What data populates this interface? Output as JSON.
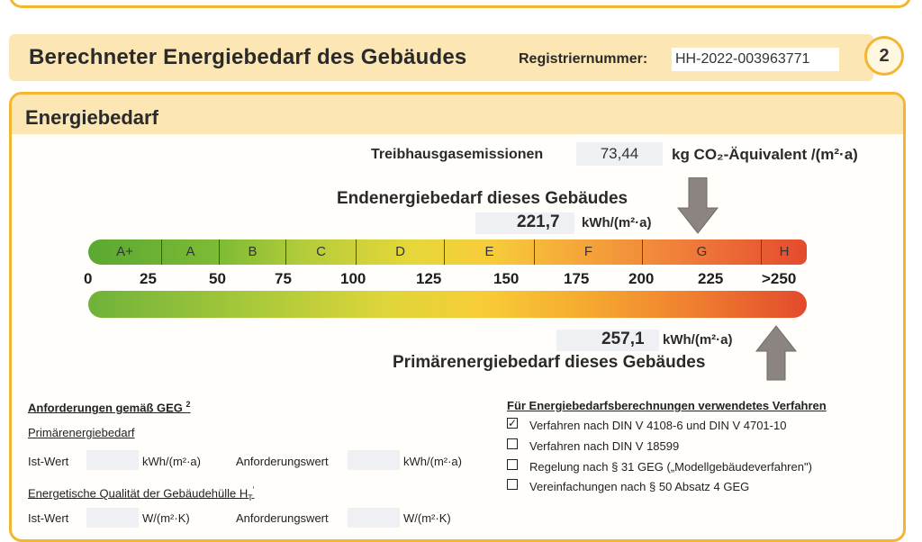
{
  "header": {
    "title": "Berechneter Energiebedarf des Gebäudes",
    "registration_label": "Registriernummer:",
    "registration_number": "HH-2022-003963771",
    "page_number": "2"
  },
  "section": {
    "title": "Energiebedarf"
  },
  "emissions": {
    "label": "Treibhausgasemissionen",
    "value": "73,44",
    "unit": "kg CO₂-Äquivalent /(m²·a)"
  },
  "end_energy": {
    "title": "Endenergiebedarf dieses Gebäudes",
    "value": "221,7",
    "unit": "kWh/(m²·a)",
    "numeric_value": 221.7
  },
  "primary_energy": {
    "title": "Primärenergiebedarf dieses Gebäudes",
    "value": "257,1",
    "unit": "kWh/(m²·a)",
    "numeric_value": 257.1
  },
  "scale": {
    "classes": [
      "A+",
      "A",
      "B",
      "C",
      "D",
      "E",
      "F",
      "G",
      "H"
    ],
    "ticks": [
      "0",
      "25",
      "50",
      "75",
      "100",
      "125",
      "150",
      "175",
      "200",
      "225",
      ">250"
    ],
    "colors": {
      "green": "#5aa832",
      "yellow": "#f7cc3a",
      "orange": "#f0803a",
      "red": "#e54a2e"
    },
    "arrow_color": "#8c8480"
  },
  "requirements": {
    "heading": "Anforderungen gemäß GEG",
    "heading_sup": "2",
    "primary_heading": "Primärenergiebedarf",
    "ist_wert_label": "Ist-Wert",
    "unit_kwh": "kWh/(m²·a)",
    "anforderungswert_label": "Anforderungswert",
    "envelope_heading": "Energetische Qualität der Gebäudehülle H",
    "envelope_sub": "T",
    "envelope_sup": "'",
    "unit_w": "W/(m²·K)"
  },
  "procedure": {
    "heading": "Für Energiebedarfsberechnungen verwendetes Verfahren",
    "options": [
      {
        "label": "Verfahren nach DIN V 4108-6 und DIN V 4701-10",
        "checked": true,
        "mark": "✓"
      },
      {
        "label": "Verfahren nach DIN V 18599",
        "checked": false,
        "mark": ""
      },
      {
        "label": "Regelung nach § 31 GEG („Modellgebäudeverfahren\")",
        "checked": false,
        "mark": ""
      },
      {
        "label": "Vereinfachungen nach § 50 Absatz 4 GEG",
        "checked": false,
        "mark": ""
      }
    ]
  }
}
